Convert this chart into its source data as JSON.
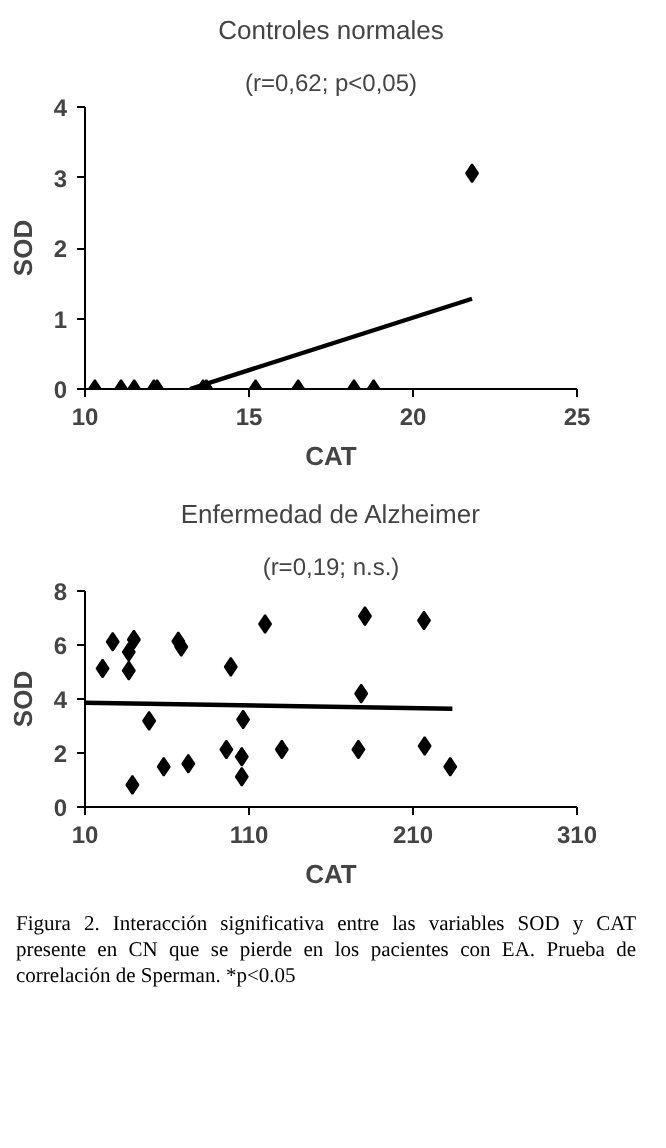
{
  "chart_data": [
    {
      "type": "scatter",
      "title": "Controles normales",
      "subtitle": "(r=0,62; p<0,05)",
      "xlabel": "CAT",
      "ylabel": "SOD",
      "xlim": [
        10,
        25
      ],
      "ylim": [
        0,
        4
      ],
      "xticks": [
        10,
        15,
        20,
        25
      ],
      "yticks": [
        0,
        1,
        2,
        3,
        4
      ],
      "grid": false,
      "series": [
        {
          "marker": "diamond",
          "color": "#000000",
          "x": [
            10.3,
            11.1,
            11.5,
            12.1,
            12.2,
            13.6,
            13.7,
            15.2,
            16.5,
            18.2,
            18.8,
            21.8
          ],
          "values": [
            0,
            0,
            0,
            0,
            0,
            0,
            0,
            0,
            0,
            0,
            0,
            3.06
          ]
        },
        {
          "type": "line",
          "color": "#000000",
          "x": [
            13.2,
            21.8
          ],
          "values": [
            0,
            1.28
          ]
        }
      ]
    },
    {
      "type": "scatter",
      "title": "Enfermedad de Alzheimer",
      "subtitle": "(r=0,19; n.s.)",
      "xlabel": "CAT",
      "ylabel": "SOD",
      "xlim": [
        10,
        310
      ],
      "ylim": [
        0,
        8
      ],
      "xticks": [
        10,
        110,
        210,
        310
      ],
      "yticks": [
        0,
        2,
        4,
        6,
        8
      ],
      "grid": false,
      "annotations": [
        "Figura 2. Interacción significativa entre las variables SOD y CAT presente en CN que se pierde en los pacientes con EA. Prueba de correlación de Sperman. *p<0.05"
      ],
      "series": [
        {
          "marker": "diamond",
          "color": "#000000",
          "x": [
            20.7,
            26.9,
            39.8,
            36.7,
            36.7,
            38.9,
            49.1,
            58,
            66.9,
            68.7,
            73,
            96.2,
            98.9,
            105.6,
            106.4,
            105.6,
            119.8,
            130,
            176.7,
            178.4,
            180.7,
            216.7,
            217.1,
            232.7
          ],
          "values": [
            5.13,
            6.12,
            6.2,
            5.74,
            5.05,
            0.82,
            3.19,
            1.49,
            6.14,
            5.93,
            1.6,
            2.13,
            5.19,
            1.86,
            3.24,
            1.12,
            6.78,
            2.13,
            2.13,
            4.2,
            7.07,
            6.91,
            2.26,
            1.49
          ]
        },
        {
          "type": "line",
          "color": "#000000",
          "x": [
            10,
            234
          ],
          "values": [
            3.86,
            3.64
          ]
        }
      ]
    }
  ]
}
